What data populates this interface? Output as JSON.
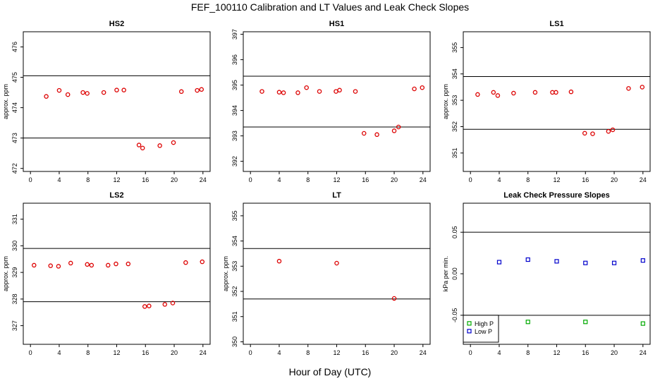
{
  "title": "FEF_100110  Calibration and LT Values and Leak Check Slopes",
  "xlabel": "Hour of Day (UTC)",
  "colors": {
    "red": "#dd0000",
    "blue": "#0000cc",
    "green": "#00aa00"
  },
  "chart_data": [
    {
      "type": "scatter",
      "title": "HS2",
      "xlabel": "",
      "ylabel": "approx. ppm",
      "xlim": [
        -1,
        25
      ],
      "ylim": [
        471.9,
        476.5
      ],
      "xticks": [
        0,
        4,
        8,
        12,
        16,
        20,
        24
      ],
      "yticks": [
        472,
        473,
        474,
        475,
        476
      ],
      "hlines": [
        475.05,
        473.0
      ],
      "series": [
        {
          "color": "red",
          "points": [
            [
              2.2,
              474.37
            ],
            [
              4.0,
              474.57
            ],
            [
              5.2,
              474.43
            ],
            [
              7.3,
              474.5
            ],
            [
              7.9,
              474.47
            ],
            [
              10.2,
              474.5
            ],
            [
              12.0,
              474.58
            ],
            [
              13.0,
              474.58
            ],
            [
              15.1,
              472.77
            ],
            [
              15.6,
              472.67
            ],
            [
              18.0,
              472.75
            ],
            [
              19.9,
              472.85
            ],
            [
              21.0,
              474.53
            ],
            [
              23.2,
              474.57
            ],
            [
              23.8,
              474.6
            ]
          ]
        }
      ]
    },
    {
      "type": "scatter",
      "title": "HS1",
      "xlabel": "",
      "ylabel": "",
      "xlim": [
        -1,
        25
      ],
      "ylim": [
        391.6,
        397.1
      ],
      "xticks": [
        0,
        4,
        8,
        12,
        16,
        20,
        24
      ],
      "yticks": [
        392,
        393,
        394,
        395,
        396,
        397
      ],
      "hlines": [
        395.35,
        393.35
      ],
      "series": [
        {
          "color": "red",
          "points": [
            [
              1.6,
              394.75
            ],
            [
              4.0,
              394.72
            ],
            [
              4.6,
              394.7
            ],
            [
              6.6,
              394.7
            ],
            [
              7.8,
              394.9
            ],
            [
              9.6,
              394.75
            ],
            [
              11.9,
              394.75
            ],
            [
              12.4,
              394.8
            ],
            [
              14.6,
              394.75
            ],
            [
              15.8,
              393.1
            ],
            [
              17.6,
              393.05
            ],
            [
              20.0,
              393.2
            ],
            [
              20.6,
              393.35
            ],
            [
              22.8,
              394.85
            ],
            [
              23.9,
              394.9
            ]
          ]
        }
      ]
    },
    {
      "type": "scatter",
      "title": "LS1",
      "xlabel": "",
      "ylabel": "approx. ppm",
      "xlim": [
        -1,
        25
      ],
      "ylim": [
        350.3,
        355.6
      ],
      "xticks": [
        0,
        4,
        8,
        12,
        16,
        20,
        24
      ],
      "yticks": [
        351,
        352,
        353,
        354,
        355
      ],
      "hlines": [
        353.9,
        351.9
      ],
      "series": [
        {
          "color": "red",
          "points": [
            [
              1.0,
              353.22
            ],
            [
              3.2,
              353.3
            ],
            [
              3.8,
              353.18
            ],
            [
              6.0,
              353.27
            ],
            [
              9.0,
              353.3
            ],
            [
              11.4,
              353.3
            ],
            [
              11.9,
              353.3
            ],
            [
              14.0,
              353.32
            ],
            [
              15.9,
              351.75
            ],
            [
              17.0,
              351.73
            ],
            [
              19.2,
              351.82
            ],
            [
              19.8,
              351.88
            ],
            [
              22.0,
              353.45
            ],
            [
              23.9,
              353.5
            ]
          ]
        }
      ]
    },
    {
      "type": "scatter",
      "title": "LS2",
      "xlabel": "",
      "ylabel": "approx. ppm",
      "xlim": [
        -1,
        25
      ],
      "ylim": [
        326.3,
        331.6
      ],
      "xticks": [
        0,
        4,
        8,
        12,
        16,
        20,
        24
      ],
      "yticks": [
        327,
        328,
        329,
        330,
        331
      ],
      "hlines": [
        329.9,
        327.9
      ],
      "series": [
        {
          "color": "red",
          "points": [
            [
              0.5,
              329.27
            ],
            [
              2.8,
              329.25
            ],
            [
              3.9,
              329.23
            ],
            [
              5.6,
              329.35
            ],
            [
              7.9,
              329.3
            ],
            [
              8.5,
              329.27
            ],
            [
              10.8,
              329.27
            ],
            [
              11.9,
              329.32
            ],
            [
              13.6,
              329.32
            ],
            [
              15.9,
              327.72
            ],
            [
              16.5,
              327.74
            ],
            [
              18.7,
              327.8
            ],
            [
              19.8,
              327.85
            ],
            [
              21.6,
              329.37
            ],
            [
              23.9,
              329.4
            ]
          ]
        }
      ]
    },
    {
      "type": "scatter",
      "title": "LT",
      "xlabel": "",
      "ylabel": "approx. ppm",
      "xlim": [
        -1,
        25
      ],
      "ylim": [
        349.9,
        355.5
      ],
      "xticks": [
        0,
        4,
        8,
        12,
        16,
        20,
        24
      ],
      "yticks": [
        350,
        351,
        352,
        353,
        354,
        355
      ],
      "hlines": [
        353.7,
        351.7
      ],
      "series": [
        {
          "color": "red",
          "points": [
            [
              4.0,
              353.2
            ],
            [
              12.0,
              353.12
            ],
            [
              20.0,
              351.72
            ]
          ]
        }
      ]
    },
    {
      "type": "scatter",
      "title": "Leak Check Pressure Slopes",
      "xlabel": "",
      "ylabel": "kPa per min.",
      "xlim": [
        -1,
        25
      ],
      "ylim": [
        -0.085,
        0.085
      ],
      "xticks": [
        0,
        4,
        8,
        12,
        16,
        20,
        24
      ],
      "yticks": [
        -0.05,
        0.0,
        0.05
      ],
      "ytick_labels": [
        "-0.05",
        "0.00",
        "0.05"
      ],
      "hlines": [
        0.05,
        -0.05
      ],
      "legend": {
        "position": "bottom-left"
      },
      "series": [
        {
          "name": "High P",
          "color": "green",
          "marker": "square",
          "points": [
            [
              8.0,
              -0.058
            ],
            [
              16.0,
              -0.058
            ],
            [
              24.0,
              -0.06
            ]
          ]
        },
        {
          "name": "Low P",
          "color": "blue",
          "marker": "square",
          "points": [
            [
              4.0,
              0.014
            ],
            [
              8.0,
              0.017
            ],
            [
              12.0,
              0.015
            ],
            [
              16.0,
              0.013
            ],
            [
              20.0,
              0.013
            ],
            [
              24.0,
              0.016
            ]
          ]
        }
      ]
    }
  ]
}
